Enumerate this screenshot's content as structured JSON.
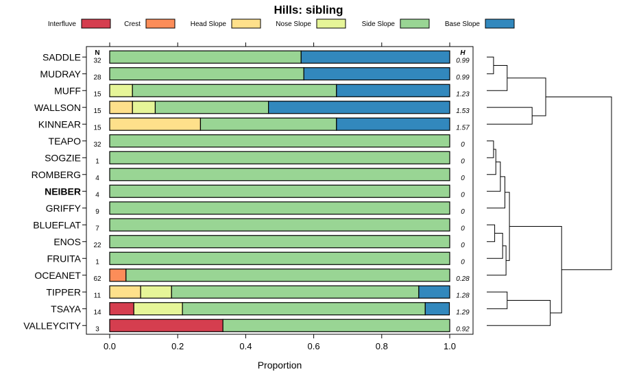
{
  "chart_data": {
    "type": "bar",
    "orientation": "horizontal",
    "stacked": true,
    "title": "Hills: sibling",
    "xlabel": "Proportion",
    "xlim": [
      0,
      1
    ],
    "xticks": [
      "0.0",
      "0.2",
      "0.4",
      "0.6",
      "0.8",
      "1.0"
    ],
    "n_header": "N",
    "h_header": "H",
    "legend": [
      {
        "name": "Interfluve",
        "color": "#D53E4F"
      },
      {
        "name": "Crest",
        "color": "#FC8D59"
      },
      {
        "name": "Head Slope",
        "color": "#FEE08B"
      },
      {
        "name": "Nose Slope",
        "color": "#E6F598"
      },
      {
        "name": "Side Slope",
        "color": "#99D594"
      },
      {
        "name": "Base Slope",
        "color": "#3288BD"
      }
    ],
    "categories": [
      "SADDLE",
      "MUDRAY",
      "MUFF",
      "WALLSON",
      "KINNEAR",
      "TEAPO",
      "SOGZIE",
      "ROMBERG",
      "NEIBER",
      "GRIFFY",
      "BLUEFLAT",
      "ENOS",
      "FRUITA",
      "OCEANET",
      "TIPPER",
      "TSAYA",
      "VALLEYCITY"
    ],
    "highlighted": "NEIBER",
    "n_values": [
      "32",
      "28",
      "15",
      "15",
      "15",
      "32",
      "1",
      "4",
      "4",
      "9",
      "7",
      "22",
      "1",
      "62",
      "11",
      "14",
      "3"
    ],
    "h_values": [
      "0.99",
      "0.99",
      "1.23",
      "1.53",
      "1.57",
      "0",
      "0",
      "0",
      "0",
      "0",
      "0",
      "0",
      "0",
      "0.28",
      "1.28",
      "1.29",
      "0.92"
    ],
    "series": [
      {
        "name": "Interfluve",
        "values": [
          0,
          0,
          0,
          0,
          0,
          0,
          0,
          0,
          0,
          0,
          0,
          0,
          0,
          0,
          0,
          0.071,
          0.333
        ]
      },
      {
        "name": "Crest",
        "values": [
          0,
          0,
          0,
          0,
          0,
          0,
          0,
          0,
          0,
          0,
          0,
          0,
          0,
          0.048,
          0,
          0,
          0
        ]
      },
      {
        "name": "Head Slope",
        "values": [
          0,
          0,
          0,
          0.067,
          0.267,
          0,
          0,
          0,
          0,
          0,
          0,
          0,
          0,
          0,
          0.091,
          0,
          0
        ]
      },
      {
        "name": "Nose Slope",
        "values": [
          0,
          0,
          0.067,
          0.067,
          0,
          0,
          0,
          0,
          0,
          0,
          0,
          0,
          0,
          0,
          0.091,
          0.143,
          0
        ]
      },
      {
        "name": "Side Slope",
        "values": [
          0.563,
          0.571,
          0.6,
          0.333,
          0.4,
          1,
          1,
          1,
          1,
          1,
          1,
          1,
          1,
          0.952,
          0.727,
          0.714,
          0.667
        ]
      },
      {
        "name": "Base Slope",
        "values": [
          0.437,
          0.429,
          0.333,
          0.533,
          0.333,
          0,
          0,
          0,
          0,
          0,
          0,
          0,
          0,
          0,
          0.091,
          0.071,
          0
        ]
      }
    ],
    "dendrogram": {
      "type": "hierarchical-clustering",
      "merges": [
        [
          0,
          1,
          0.3
        ],
        [
          2,
          17,
          0.9
        ],
        [
          3,
          4,
          2.0
        ],
        [
          18,
          19,
          2.6
        ],
        [
          14,
          15,
          0.9
        ],
        [
          5,
          6,
          0.3
        ],
        [
          22,
          7,
          0.4
        ],
        [
          23,
          8,
          0.6
        ],
        [
          24,
          9,
          0.8
        ],
        [
          10,
          11,
          0.35
        ],
        [
          26,
          12,
          0.7
        ],
        [
          27,
          13,
          0.85
        ],
        [
          25,
          28,
          1.0
        ],
        [
          21,
          16,
          2.8
        ],
        [
          29,
          30,
          3.3
        ],
        [
          20,
          31,
          5.5
        ]
      ]
    }
  }
}
